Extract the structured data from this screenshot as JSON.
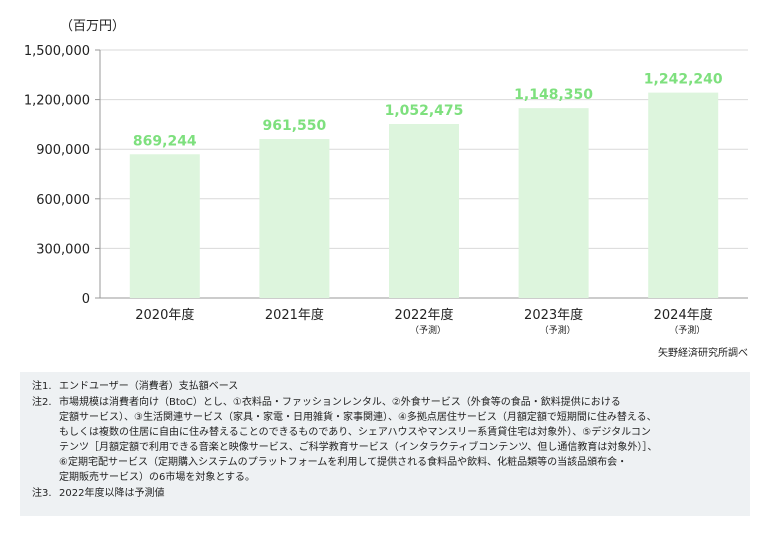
{
  "chart_data": {
    "type": "bar",
    "unit_label": "（百万円）",
    "categories": [
      "2020年度",
      "2021年度",
      "2022年度",
      "2023年度",
      "2024年度"
    ],
    "category_sublabels": [
      "",
      "",
      "（予測）",
      "（予測）",
      "（予測）"
    ],
    "values": [
      869244,
      961550,
      1052475,
      1148350,
      1242240
    ],
    "value_labels": [
      "869,244",
      "961,550",
      "1,052,475",
      "1,148,350",
      "1,242,240"
    ],
    "yticks": [
      0,
      300000,
      600000,
      900000,
      1200000,
      1500000
    ],
    "ytick_labels": [
      "0",
      "300,000",
      "600,000",
      "900,000",
      "1,200,000",
      "1,500,000"
    ],
    "ylim": [
      0,
      1500000
    ],
    "grid": true,
    "colors": {
      "bar": "#ddf5dd",
      "label": "#7ee07e",
      "grid": "#d9d9d9",
      "axis": "#999999"
    }
  },
  "source": "矢野経済研究所調べ",
  "notes": [
    {
      "num": "注1.",
      "text": "エンドユーザー（消費者）支払額ベース"
    },
    {
      "num": "注2.",
      "text": "市場規模は消費者向け（BtoC）とし、①衣料品・ファッションレンタル、②外食サービス（外食等の食品・飲料提供における\n定額サービス）、③生活関連サービス（家具・家電・日用雑貨・家事関連）、④多拠点居住サービス（月額定額で短期間に住み替える、\nもしくは複数の住居に自由に住み替えることのできるものであり、シェアハウスやマンスリー系賃貸住宅は対象外）、⑤デジタルコン\nテンツ［月額定額で利用できる音楽と映像サービス、ご科学教育サービス（インタラクティブコンテンツ、但し通信教育は対象外）］、\n⑥定期宅配サービス（定期購入システムのプラットフォームを利用して提供される食料品や飲料、化粧品類等の当該品頒布会・\n定期販売サービス）の6市場を対象とする。"
    },
    {
      "num": "注3.",
      "text": "2022年度以降は予測値"
    }
  ]
}
